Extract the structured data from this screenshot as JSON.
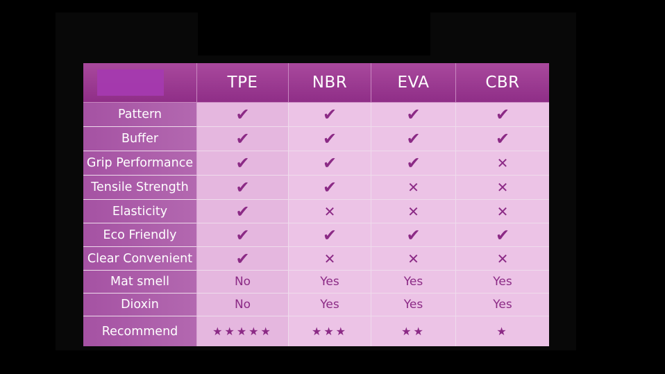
{
  "colors": {
    "header_bg": "#982f90",
    "label_bg": "#ac5aa9",
    "cell_bg": "#ecc3e6",
    "mark_color": "#8b2a85",
    "page_bg": "#000000"
  },
  "table": {
    "columns": [
      "TPE",
      "NBR",
      "EVA",
      "CBR"
    ],
    "rows": [
      {
        "label": "Pattern",
        "cells": [
          {
            "icon": "check-icon"
          },
          {
            "icon": "check-icon"
          },
          {
            "icon": "check-icon"
          },
          {
            "icon": "check-icon"
          }
        ]
      },
      {
        "label": "Buffer",
        "cells": [
          {
            "icon": "check-icon"
          },
          {
            "icon": "check-icon"
          },
          {
            "icon": "check-icon"
          },
          {
            "icon": "check-icon"
          }
        ]
      },
      {
        "label": "Grip Performance",
        "cells": [
          {
            "icon": "check-icon"
          },
          {
            "icon": "check-icon"
          },
          {
            "icon": "check-icon"
          },
          {
            "icon": "cross-icon"
          }
        ]
      },
      {
        "label": "Tensile Strength",
        "cells": [
          {
            "icon": "check-icon"
          },
          {
            "icon": "check-icon"
          },
          {
            "icon": "cross-icon"
          },
          {
            "icon": "cross-icon"
          }
        ]
      },
      {
        "label": "Elasticity",
        "cells": [
          {
            "icon": "check-icon"
          },
          {
            "icon": "cross-icon"
          },
          {
            "icon": "cross-icon"
          },
          {
            "icon": "cross-icon"
          }
        ]
      },
      {
        "label": "Eco Friendly",
        "cells": [
          {
            "icon": "check-icon"
          },
          {
            "icon": "check-icon"
          },
          {
            "icon": "check-icon"
          },
          {
            "icon": "check-icon"
          }
        ]
      },
      {
        "label": "Clear Convenient",
        "cells": [
          {
            "icon": "check-icon"
          },
          {
            "icon": "cross-icon"
          },
          {
            "icon": "cross-icon"
          },
          {
            "icon": "cross-icon"
          }
        ]
      },
      {
        "label": "Mat smell",
        "cells": [
          {
            "text": "No"
          },
          {
            "text": "Yes"
          },
          {
            "text": "Yes"
          },
          {
            "text": "Yes"
          }
        ]
      },
      {
        "label": "Dioxin",
        "cells": [
          {
            "text": "No"
          },
          {
            "text": "Yes"
          },
          {
            "text": "Yes"
          },
          {
            "text": "Yes"
          }
        ]
      },
      {
        "label": "Recommend",
        "cells": [
          {
            "stars": 5
          },
          {
            "stars": 3
          },
          {
            "stars": 2
          },
          {
            "stars": 1
          }
        ]
      }
    ]
  }
}
